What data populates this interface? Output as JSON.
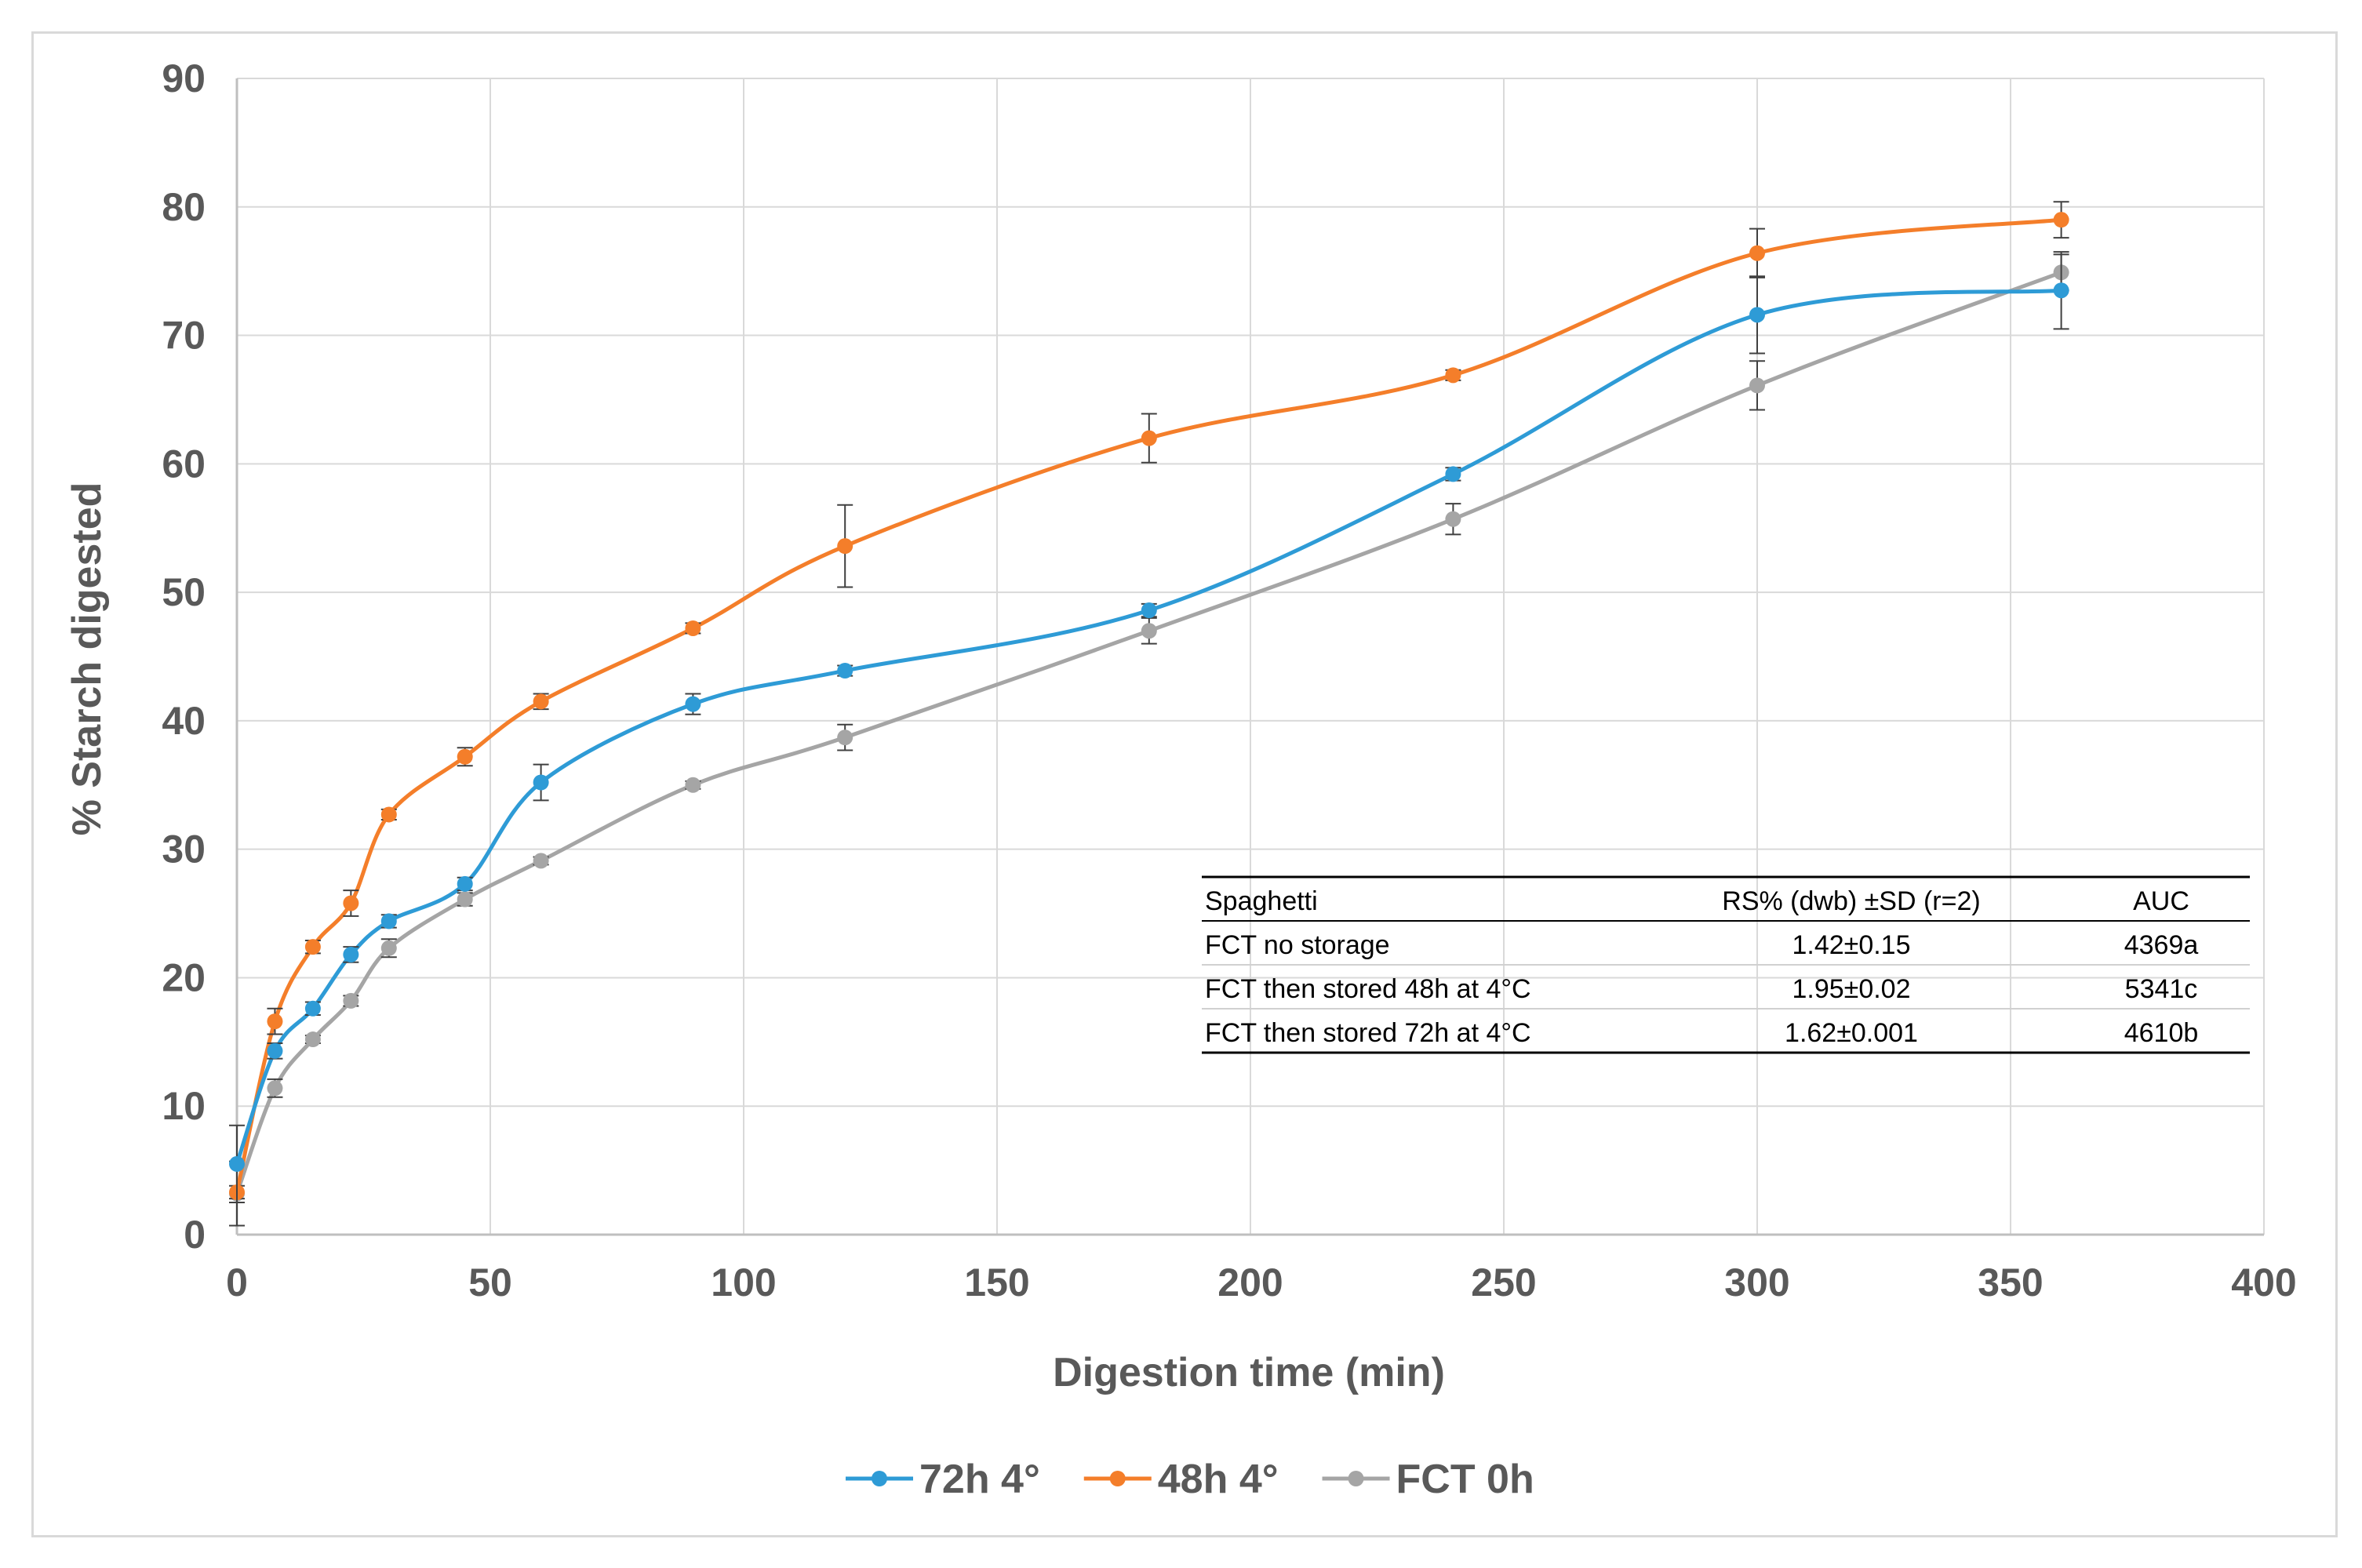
{
  "chart_data": {
    "type": "line",
    "xlabel": "Digestion time (min)",
    "ylabel": "% Starch digested",
    "xlim": [
      0,
      400
    ],
    "ylim": [
      0,
      90
    ],
    "x_ticks": [
      0,
      50,
      100,
      150,
      200,
      250,
      300,
      350,
      400
    ],
    "y_ticks": [
      0,
      10,
      20,
      30,
      40,
      50,
      60,
      70,
      80,
      90
    ],
    "grid": true,
    "legend_position": "bottom",
    "series": [
      {
        "name": "72h 4°",
        "color": "#2E9BD6",
        "x": [
          0,
          7.5,
          15,
          22.5,
          30,
          45,
          60,
          90,
          120,
          180,
          240,
          300,
          360
        ],
        "y": [
          5.5,
          14.3,
          17.6,
          21.8,
          24.4,
          27.3,
          35.2,
          41.3,
          43.9,
          48.6,
          59.2,
          71.6,
          73.5
        ],
        "error": [
          3.0,
          0.6,
          0.5,
          0.6,
          0.5,
          0.5,
          1.4,
          0.8,
          0.4,
          0.5,
          0.5,
          3.0,
          3.0
        ]
      },
      {
        "name": "48h 4°",
        "color": "#F47E2A",
        "x": [
          0,
          7.5,
          15,
          22.5,
          30,
          45,
          60,
          90,
          120,
          180,
          240,
          300,
          360
        ],
        "y": [
          3.3,
          16.6,
          22.4,
          25.8,
          32.7,
          37.2,
          41.5,
          47.2,
          53.6,
          62.0,
          66.9,
          76.4,
          79.0
        ],
        "error": [
          0.5,
          1.0,
          0.5,
          1.0,
          0.4,
          0.7,
          0.6,
          0.4,
          3.2,
          1.9,
          0.4,
          1.9,
          1.4
        ]
      },
      {
        "name": "FCT 0h",
        "color": "#A5A5A5",
        "x": [
          0,
          7.5,
          15,
          22.5,
          30,
          45,
          60,
          90,
          120,
          180,
          240,
          300,
          360
        ],
        "y": [
          3.2,
          11.4,
          15.2,
          18.2,
          22.3,
          26.1,
          29.1,
          35.0,
          38.7,
          47.0,
          55.7,
          66.1,
          74.9
        ],
        "error": [
          2.5,
          0.7,
          0.3,
          0.4,
          0.7,
          0.5,
          0.3,
          0.3,
          1.0,
          1.0,
          1.2,
          1.9,
          1.4
        ]
      }
    ],
    "inset_table": {
      "headers": [
        "Spaghetti",
        "RS% (dwb) ±SD (r=2)",
        "AUC"
      ],
      "rows": [
        [
          "FCT no storage",
          "1.42±0.15",
          "4369a"
        ],
        [
          "FCT then stored 48h at 4°C",
          "1.95±0.02",
          "5341c"
        ],
        [
          "FCT then stored 72h at 4°C",
          "1.62±0.001",
          "4610b"
        ]
      ]
    }
  }
}
